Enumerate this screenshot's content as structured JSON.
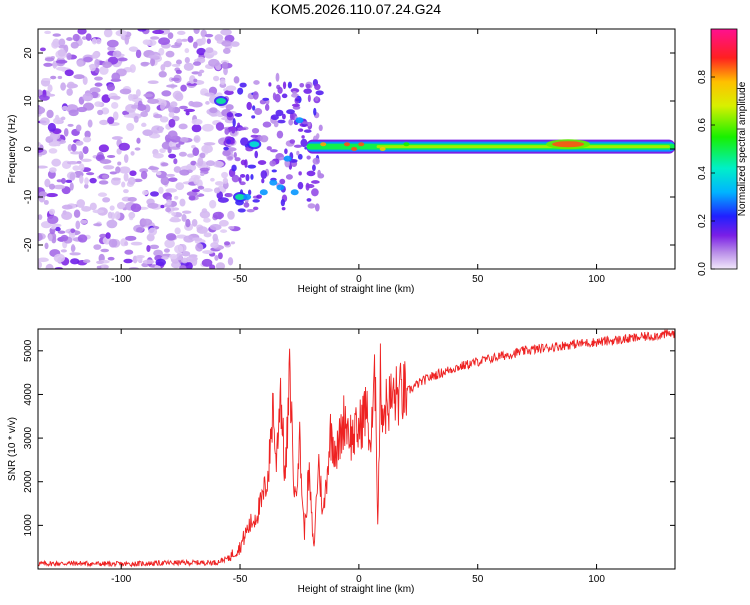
{
  "title": "KOM5.2026.110.07.24.G24",
  "chart_data": [
    {
      "type": "heatmap",
      "id": "spectrogram",
      "xlabel": "Height of straight line (km)",
      "ylabel": "Frequency (Hz)",
      "xlim": [
        -135,
        133
      ],
      "ylim": [
        -25,
        25
      ],
      "xticks": [
        -100,
        -50,
        0,
        50,
        100
      ],
      "xticklabels": [
        "-100",
        "-50",
        "0",
        "50",
        "100"
      ],
      "yticks": [
        -20,
        -10,
        0,
        10,
        20
      ],
      "yticklabels": [
        "-20",
        "-10",
        "0",
        "10",
        "20"
      ],
      "colorbar": {
        "label": "Normalized spectral amplitude",
        "range": [
          0,
          1
        ],
        "ticks": [
          0.0,
          0.2,
          0.4,
          0.6,
          0.8
        ],
        "ticklabels": [
          "0.0",
          "0.2",
          "0.4",
          "0.6",
          "0.8"
        ]
      },
      "features": [
        {
          "name": "noise-region",
          "x_range": [
            -135,
            -52
          ],
          "f_range": [
            -25,
            25
          ],
          "amplitude": 0.08
        },
        {
          "name": "carrier-line",
          "x_range": [
            -22,
            133
          ],
          "frequency": 0.5,
          "amplitude": 0.5
        },
        {
          "name": "peak-1",
          "x": -58,
          "frequency": 10,
          "amplitude": 0.45
        },
        {
          "name": "peak-2",
          "x": -44,
          "frequency": 1,
          "amplitude": 0.4
        },
        {
          "name": "peak-3",
          "x": -50,
          "frequency": -10,
          "amplitude": 0.45
        },
        {
          "name": "peak-4",
          "x": 88,
          "frequency": 1,
          "amplitude": 0.85
        }
      ]
    },
    {
      "type": "line",
      "id": "snr",
      "xlabel": "Height of straight line (km)",
      "ylabel": "SNR (10 * v/v)",
      "xlim": [
        -135,
        133
      ],
      "ylim": [
        0,
        5500
      ],
      "xticks": [
        -100,
        -50,
        0,
        50,
        100
      ],
      "xticklabels": [
        "-100",
        "-50",
        "0",
        "50",
        "100"
      ],
      "yticks": [
        1000,
        2000,
        3000,
        4000,
        5000
      ],
      "yticklabels": [
        "1000",
        "2000",
        "3000",
        "4000",
        "5000"
      ],
      "color": "#ee2222",
      "series": [
        {
          "name": "SNR",
          "x": [
            -135,
            -120,
            -100,
            -80,
            -60,
            -55,
            -50,
            -47,
            -44,
            -41,
            -38,
            -36,
            -35,
            -33,
            -31,
            -29,
            -27,
            -25,
            -23,
            -21,
            -19,
            -17,
            -15,
            -12,
            -9,
            -6,
            -3,
            0,
            3,
            5,
            7,
            8,
            9,
            10,
            12,
            15,
            20,
            25,
            30,
            40,
            50,
            60,
            70,
            80,
            90,
            100,
            110,
            120,
            133
          ],
          "y": [
            120,
            130,
            110,
            140,
            150,
            250,
            500,
            900,
            1150,
            1500,
            2200,
            3900,
            2300,
            4200,
            2000,
            4500,
            1500,
            3000,
            800,
            2200,
            400,
            2500,
            1200,
            3100,
            2700,
            3500,
            3000,
            3200,
            3700,
            2800,
            4500,
            900,
            4400,
            3600,
            3800,
            3950,
            4050,
            4250,
            4400,
            4600,
            4750,
            4880,
            5000,
            5080,
            5150,
            5200,
            5250,
            5320,
            5400
          ]
        }
      ]
    }
  ]
}
